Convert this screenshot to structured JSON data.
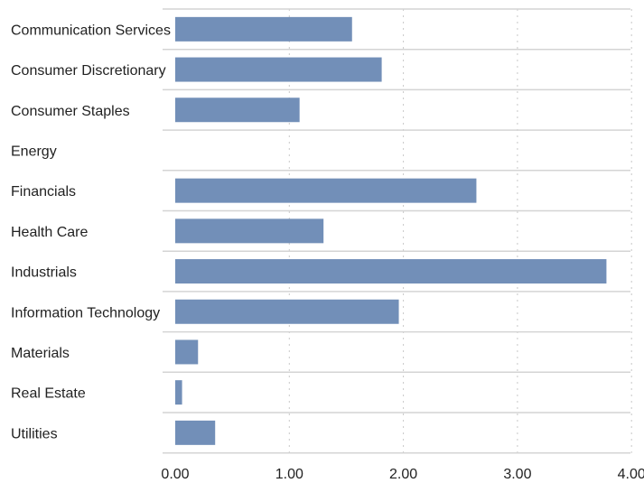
{
  "chart_data": {
    "type": "bar",
    "orientation": "horizontal",
    "categories": [
      "Communication Services",
      "Consumer Discretionary",
      "Consumer Staples",
      "Energy",
      "Financials",
      "Health Care",
      "Industrials",
      "Information Technology",
      "Materials",
      "Real Estate",
      "Utilities"
    ],
    "values": [
      1.55,
      1.81,
      1.09,
      0,
      2.64,
      1.3,
      3.78,
      1.96,
      0.2,
      0.06,
      0.35
    ],
    "xlim": [
      0,
      4
    ],
    "xticks": [
      "0.00",
      "1.00",
      "2.00",
      "3.00",
      "4.00"
    ],
    "title": "",
    "xlabel": "",
    "ylabel": "",
    "grid": "vertical dotted",
    "legend": "none",
    "bar_color": "#728fb8"
  }
}
